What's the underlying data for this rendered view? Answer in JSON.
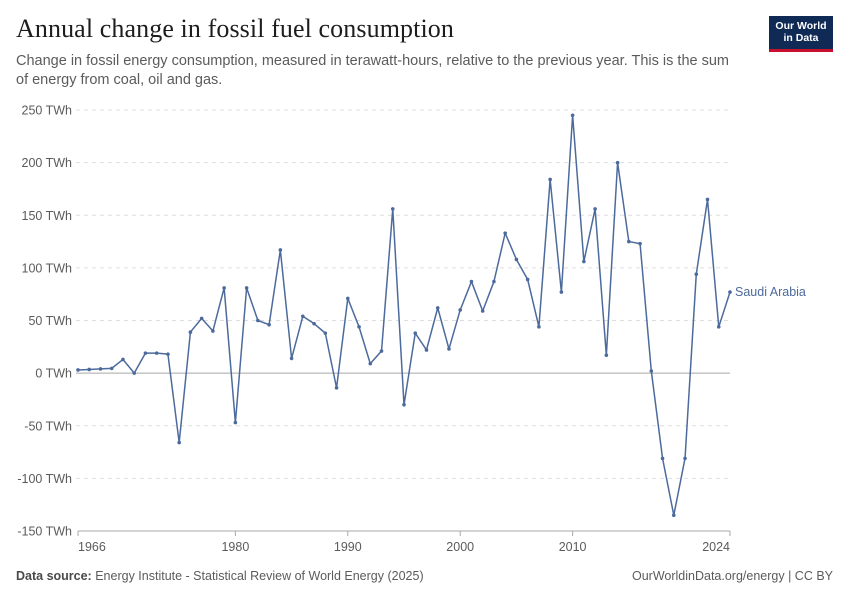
{
  "header": {
    "title": "Annual change in fossil fuel consumption",
    "subtitle": "Change in fossil energy consumption, measured in terawatt-hours, relative to the previous year. This is the sum of energy from coal, oil and gas."
  },
  "logo": {
    "line1": "Our World",
    "line2": "in Data"
  },
  "footer": {
    "source_label": "Data source:",
    "source_text": "Energy Institute - Statistical Review of World Energy (2025)",
    "right_text": "OurWorldinData.org/energy | CC BY"
  },
  "colors": {
    "series": "#4c6a9c",
    "grid": "#dddddd",
    "zero": "#a8a8a8",
    "text": "#5b5b5b"
  },
  "chart_data": {
    "type": "line",
    "title": "Annual change in fossil fuel consumption",
    "xlabel": "",
    "ylabel": "",
    "xlim": [
      1966,
      2024
    ],
    "ylim": [
      -150,
      250
    ],
    "y_ticks": [
      -150,
      -100,
      -50,
      0,
      50,
      100,
      150,
      200,
      250
    ],
    "y_tick_labels": [
      "-150 TWh",
      "-100 TWh",
      "-50 TWh",
      "0 TWh",
      "50 TWh",
      "100 TWh",
      "150 TWh",
      "200 TWh",
      "250 TWh"
    ],
    "x_ticks": [
      1966,
      1980,
      1990,
      2000,
      2010,
      2024
    ],
    "x_tick_labels": [
      "1966",
      "1980",
      "1990",
      "2000",
      "2010",
      "2024"
    ],
    "grid": "horizontal dashed",
    "series": [
      {
        "name": "Saudi Arabia",
        "x": [
          1966,
          1967,
          1968,
          1969,
          1970,
          1971,
          1972,
          1973,
          1974,
          1975,
          1976,
          1977,
          1978,
          1979,
          1980,
          1981,
          1982,
          1983,
          1984,
          1985,
          1986,
          1987,
          1988,
          1989,
          1990,
          1991,
          1992,
          1993,
          1994,
          1995,
          1996,
          1997,
          1998,
          1999,
          2000,
          2001,
          2002,
          2003,
          2004,
          2005,
          2006,
          2007,
          2008,
          2009,
          2010,
          2011,
          2012,
          2013,
          2014,
          2015,
          2016,
          2017,
          2018,
          2019,
          2020,
          2021,
          2022,
          2023,
          2024
        ],
        "values": [
          3,
          3.5,
          4,
          4.5,
          13,
          0,
          19,
          19,
          18,
          -66,
          39,
          52,
          40,
          81,
          -47,
          81,
          50,
          46,
          117,
          14,
          54,
          47,
          38,
          -14,
          71,
          44,
          9,
          21,
          156,
          -30,
          38,
          22,
          62,
          23,
          60,
          87,
          59,
          87,
          133,
          108,
          89,
          44,
          184,
          77,
          245,
          106,
          156,
          17,
          200,
          125,
          123,
          2,
          -81,
          -135,
          -81,
          94,
          165,
          44,
          77
        ]
      }
    ]
  }
}
